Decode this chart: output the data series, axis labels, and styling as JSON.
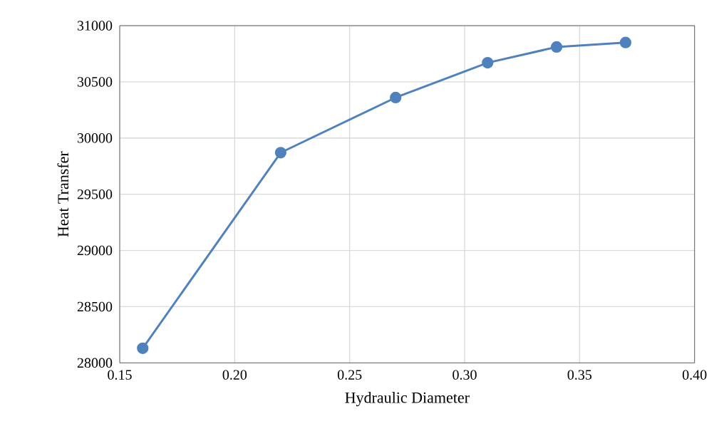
{
  "chart_data": {
    "type": "line",
    "xlabel": "Hydraulic Diameter",
    "ylabel": "Heat Transfer",
    "x": [
      0.16,
      0.22,
      0.27,
      0.31,
      0.34,
      0.37
    ],
    "values": [
      28130,
      29870,
      30360,
      30670,
      30810,
      30850
    ],
    "color": "#4f81bd",
    "marker": "circle",
    "line_style": "solid",
    "grid": true,
    "xlim": [
      0.15,
      0.4
    ],
    "xticks": [
      {
        "value": 0.15,
        "label": "0.15"
      },
      {
        "value": 0.2,
        "label": "0.20"
      },
      {
        "value": 0.25,
        "label": "0.25"
      },
      {
        "value": 0.3,
        "label": "0.30"
      },
      {
        "value": 0.35,
        "label": "0.35"
      },
      {
        "value": 0.4,
        "label": "0.40"
      }
    ],
    "ylim": [
      28000,
      31000
    ],
    "yticks": [
      28000,
      28500,
      29000,
      29500,
      30000,
      30500,
      31000
    ]
  }
}
